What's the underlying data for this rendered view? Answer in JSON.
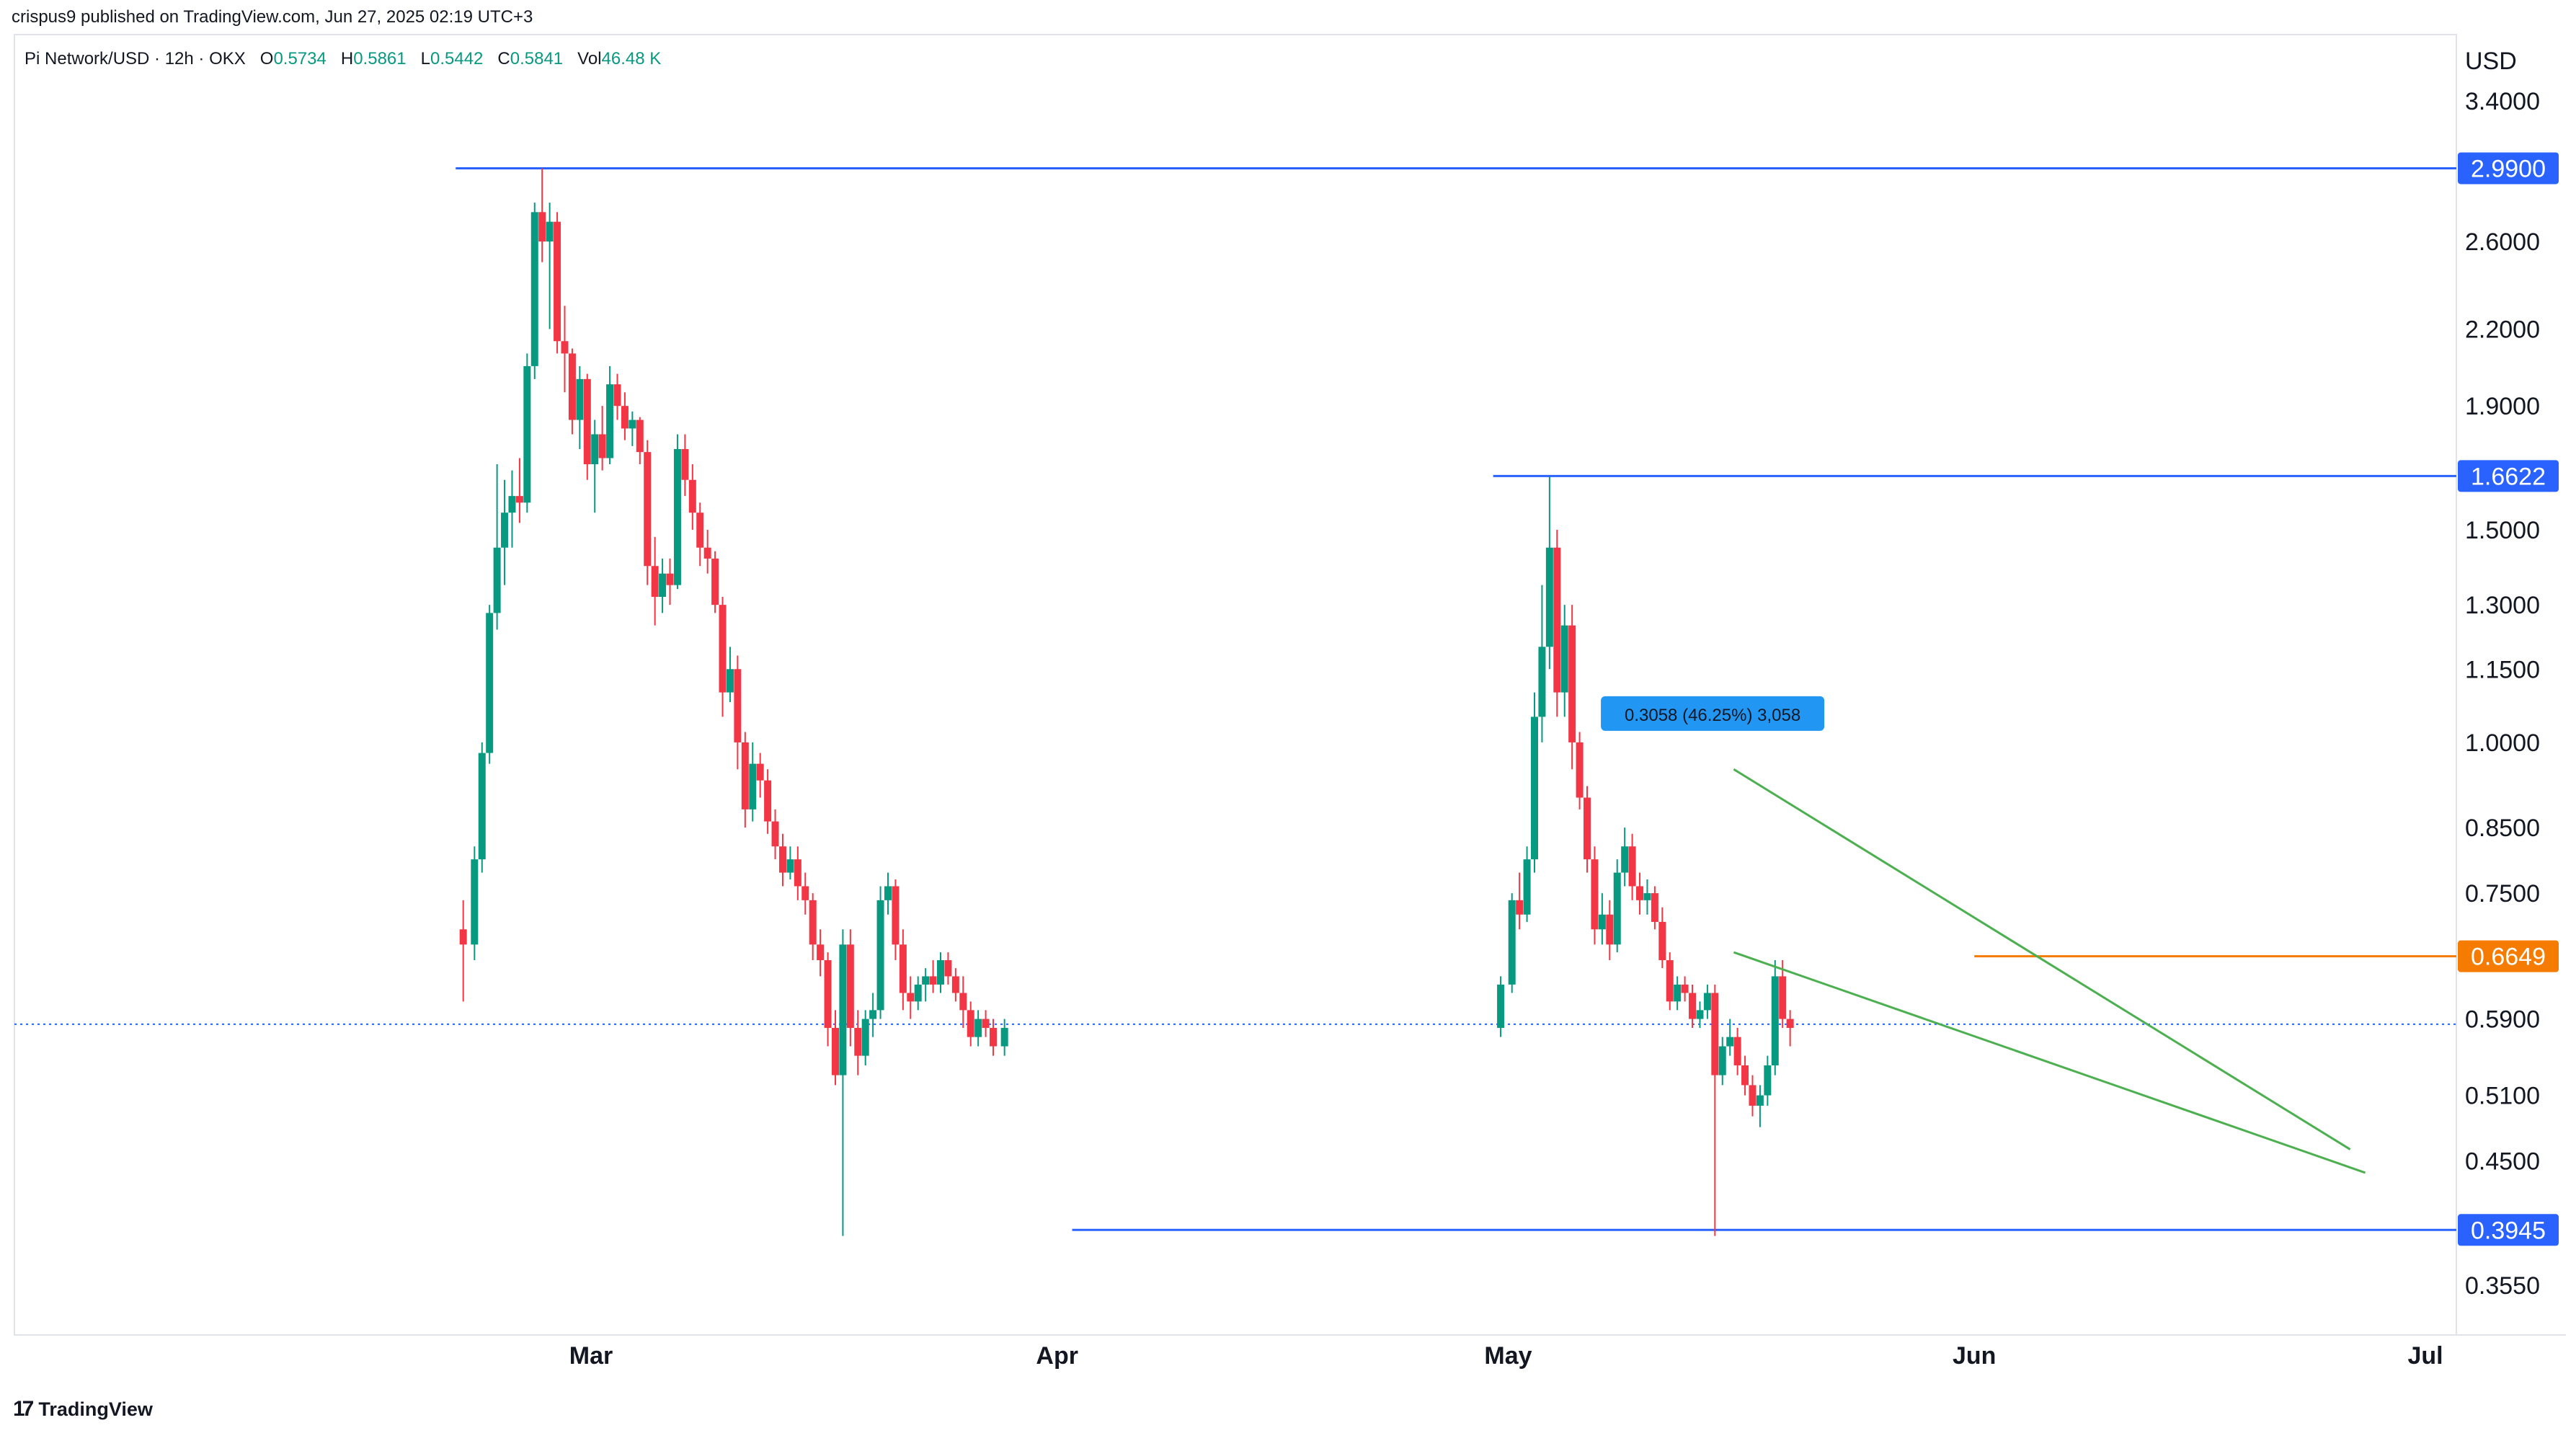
{
  "header": {
    "published": "crispus9 published on TradingView.com, Jun 27, 2025 02:19 UTC+3",
    "symbol": "Pi Network/USD · 12h · OKX",
    "ohlc": [
      {
        "key": "O",
        "value": "0.5734"
      },
      {
        "key": "H",
        "value": "0.5861"
      },
      {
        "key": "L",
        "value": "0.5442"
      },
      {
        "key": "C",
        "value": "0.5841"
      },
      {
        "key": "Vol",
        "value": "46.48 K"
      }
    ]
  },
  "footer": {
    "logo_text": "TradingView",
    "logo_glyph": "17"
  },
  "colors": {
    "up": "#089981",
    "down": "#f23645",
    "level_line": "#2962ff",
    "level_tag": "#2962ff",
    "orange": "#f57c00",
    "wedge": "#4caf50",
    "measure": "#2196f3",
    "price_line": "#2962ff"
  },
  "chart_data": {
    "type": "candlestick",
    "currency_label": "USD",
    "y_scale": "log",
    "y_ticks": [
      "3.4000",
      "2.6000",
      "2.2000",
      "1.9000",
      "1.5000",
      "1.3000",
      "1.1500",
      "1.0000",
      "0.8500",
      "0.7500",
      "0.5900",
      "0.5100",
      "0.4500",
      "0.3550"
    ],
    "y_tick_values": [
      3.4,
      2.6,
      2.2,
      1.9,
      1.5,
      1.3,
      1.15,
      1.0,
      0.85,
      0.75,
      0.59,
      0.51,
      0.45,
      0.355
    ],
    "x_ticks": [
      "Mar",
      "Apr",
      "May",
      "Jun",
      "Jul"
    ],
    "x_tick_dates": [
      "2025-03-01",
      "2025-04-01",
      "2025-05-01",
      "2025-06-01",
      "2025-07-01"
    ],
    "horizontal_levels": [
      {
        "label": "2.9900",
        "value": 2.99,
        "from": "2025-02-20",
        "color": "#2962ff"
      },
      {
        "label": "1.6622",
        "value": 1.6622,
        "from": "2025-04-30",
        "color": "#2962ff"
      },
      {
        "label": "0.6649",
        "value": 0.6649,
        "from": "2025-06-01",
        "color": "#f57c00"
      },
      {
        "label": "0.3945",
        "value": 0.3945,
        "from": "2025-04-02",
        "color": "#2962ff"
      }
    ],
    "current_price": 0.5841,
    "measure_label": "0.3058 (46.25%) 3,058",
    "wedge": {
      "upper": [
        [
          "2025-05-16",
          0.95
        ],
        [
          "2025-06-26",
          0.46
        ]
      ],
      "lower": [
        [
          "2025-05-16",
          0.67
        ],
        [
          "2025-06-27",
          0.44
        ]
      ]
    },
    "candles": [
      [
        "2025-02-20",
        0.7,
        0.74,
        0.61,
        0.68
      ],
      [
        "2025-02-21",
        0.68,
        0.82,
        0.66,
        0.8
      ],
      [
        "2025-02-21",
        0.8,
        1.0,
        0.78,
        0.98
      ],
      [
        "2025-02-22",
        0.98,
        1.3,
        0.96,
        1.28
      ],
      [
        "2025-02-22",
        1.28,
        1.7,
        1.24,
        1.45
      ],
      [
        "2025-02-23",
        1.45,
        1.65,
        1.35,
        1.55
      ],
      [
        "2025-02-23",
        1.55,
        1.68,
        1.45,
        1.6
      ],
      [
        "2025-02-24",
        1.6,
        1.72,
        1.52,
        1.58
      ],
      [
        "2025-02-24",
        1.58,
        2.1,
        1.55,
        2.05
      ],
      [
        "2025-02-25",
        2.05,
        2.8,
        2.0,
        2.75
      ],
      [
        "2025-02-25",
        2.75,
        2.99,
        2.5,
        2.6
      ],
      [
        "2025-02-26",
        2.6,
        2.8,
        2.2,
        2.7
      ],
      [
        "2025-02-26",
        2.7,
        2.75,
        2.1,
        2.15
      ],
      [
        "2025-02-27",
        2.15,
        2.3,
        1.95,
        2.1
      ],
      [
        "2025-02-27",
        2.1,
        2.12,
        1.8,
        1.85
      ],
      [
        "2025-02-28",
        1.85,
        2.05,
        1.75,
        2.0
      ],
      [
        "2025-02-28",
        2.0,
        2.02,
        1.65,
        1.7
      ],
      [
        "2025-03-01",
        1.7,
        1.85,
        1.55,
        1.8
      ],
      [
        "2025-03-01",
        1.8,
        1.9,
        1.68,
        1.72
      ],
      [
        "2025-03-02",
        1.72,
        2.05,
        1.7,
        1.98
      ],
      [
        "2025-03-02",
        1.98,
        2.02,
        1.85,
        1.9
      ],
      [
        "2025-03-03",
        1.9,
        1.95,
        1.78,
        1.82
      ],
      [
        "2025-03-03",
        1.82,
        1.88,
        1.76,
        1.85
      ],
      [
        "2025-03-04",
        1.85,
        1.86,
        1.7,
        1.74
      ],
      [
        "2025-03-04",
        1.74,
        1.78,
        1.35,
        1.4
      ],
      [
        "2025-03-05",
        1.4,
        1.48,
        1.25,
        1.32
      ],
      [
        "2025-03-05",
        1.32,
        1.42,
        1.28,
        1.38
      ],
      [
        "2025-03-06",
        1.38,
        1.42,
        1.3,
        1.35
      ],
      [
        "2025-03-06",
        1.35,
        1.8,
        1.34,
        1.75
      ],
      [
        "2025-03-07",
        1.75,
        1.8,
        1.6,
        1.65
      ],
      [
        "2025-03-07",
        1.65,
        1.7,
        1.5,
        1.55
      ],
      [
        "2025-03-08",
        1.55,
        1.58,
        1.4,
        1.45
      ],
      [
        "2025-03-08",
        1.45,
        1.5,
        1.38,
        1.42
      ],
      [
        "2025-03-09",
        1.42,
        1.44,
        1.28,
        1.3
      ],
      [
        "2025-03-09",
        1.3,
        1.32,
        1.05,
        1.1
      ],
      [
        "2025-03-10",
        1.1,
        1.2,
        1.08,
        1.15
      ],
      [
        "2025-03-10",
        1.15,
        1.18,
        0.95,
        1.0
      ],
      [
        "2025-03-11",
        1.0,
        1.02,
        0.85,
        0.88
      ],
      [
        "2025-03-11",
        0.88,
        1.0,
        0.86,
        0.96
      ],
      [
        "2025-03-12",
        0.96,
        0.98,
        0.9,
        0.93
      ],
      [
        "2025-03-12",
        0.93,
        0.95,
        0.84,
        0.86
      ],
      [
        "2025-03-13",
        0.86,
        0.88,
        0.8,
        0.82
      ],
      [
        "2025-03-13",
        0.82,
        0.84,
        0.76,
        0.78
      ],
      [
        "2025-03-14",
        0.78,
        0.82,
        0.77,
        0.8
      ],
      [
        "2025-03-14",
        0.8,
        0.82,
        0.74,
        0.76
      ],
      [
        "2025-03-15",
        0.76,
        0.78,
        0.72,
        0.74
      ],
      [
        "2025-03-15",
        0.74,
        0.75,
        0.66,
        0.68
      ],
      [
        "2025-03-16",
        0.68,
        0.7,
        0.64,
        0.66
      ],
      [
        "2025-03-16",
        0.66,
        0.67,
        0.56,
        0.58
      ],
      [
        "2025-03-17",
        0.58,
        0.6,
        0.52,
        0.53
      ],
      [
        "2025-03-17",
        0.53,
        0.7,
        0.39,
        0.68
      ],
      [
        "2025-03-18",
        0.68,
        0.7,
        0.56,
        0.58
      ],
      [
        "2025-03-18",
        0.58,
        0.6,
        0.53,
        0.55
      ],
      [
        "2025-03-19",
        0.55,
        0.6,
        0.54,
        0.59
      ],
      [
        "2025-03-19",
        0.59,
        0.62,
        0.57,
        0.6
      ],
      [
        "2025-03-20",
        0.6,
        0.76,
        0.59,
        0.74
      ],
      [
        "2025-03-20",
        0.74,
        0.78,
        0.72,
        0.76
      ],
      [
        "2025-03-21",
        0.76,
        0.77,
        0.66,
        0.68
      ],
      [
        "2025-03-21",
        0.68,
        0.7,
        0.6,
        0.62
      ],
      [
        "2025-03-22",
        0.62,
        0.64,
        0.59,
        0.61
      ],
      [
        "2025-03-22",
        0.61,
        0.64,
        0.6,
        0.63
      ],
      [
        "2025-03-23",
        0.63,
        0.65,
        0.61,
        0.64
      ],
      [
        "2025-03-23",
        0.64,
        0.66,
        0.62,
        0.63
      ],
      [
        "2025-03-24",
        0.63,
        0.67,
        0.62,
        0.66
      ],
      [
        "2025-03-24",
        0.66,
        0.67,
        0.63,
        0.64
      ],
      [
        "2025-03-25",
        0.64,
        0.65,
        0.61,
        0.62
      ],
      [
        "2025-03-25",
        0.62,
        0.64,
        0.58,
        0.6
      ],
      [
        "2025-03-26",
        0.6,
        0.61,
        0.56,
        0.57
      ],
      [
        "2025-03-26",
        0.57,
        0.6,
        0.56,
        0.59
      ],
      [
        "2025-03-27",
        0.59,
        0.6,
        0.57,
        0.58
      ],
      [
        "2025-03-27",
        0.58,
        0.59,
        0.55,
        0.56
      ],
      [
        "2025-03-28",
        0.56,
        0.59,
        0.55,
        0.58
      ],
      [
        "2025-04-30",
        0.58,
        0.64,
        0.57,
        0.63
      ],
      [
        "2025-05-01",
        0.63,
        0.75,
        0.62,
        0.74
      ],
      [
        "2025-05-01",
        0.74,
        0.78,
        0.7,
        0.72
      ],
      [
        "2025-05-02",
        0.72,
        0.82,
        0.71,
        0.8
      ],
      [
        "2025-05-02",
        0.8,
        1.1,
        0.78,
        1.05
      ],
      [
        "2025-05-03",
        1.05,
        1.35,
        1.0,
        1.2
      ],
      [
        "2025-05-03",
        1.2,
        1.66,
        1.15,
        1.45
      ],
      [
        "2025-05-04",
        1.45,
        1.5,
        1.05,
        1.1
      ],
      [
        "2025-05-04",
        1.1,
        1.3,
        1.05,
        1.25
      ],
      [
        "2025-05-05",
        1.25,
        1.3,
        0.95,
        1.0
      ],
      [
        "2025-05-05",
        1.0,
        1.02,
        0.88,
        0.9
      ],
      [
        "2025-05-06",
        0.9,
        0.92,
        0.78,
        0.8
      ],
      [
        "2025-05-06",
        0.8,
        0.82,
        0.68,
        0.7
      ],
      [
        "2025-05-07",
        0.7,
        0.75,
        0.68,
        0.72
      ],
      [
        "2025-05-07",
        0.72,
        0.74,
        0.66,
        0.68
      ],
      [
        "2025-05-08",
        0.68,
        0.8,
        0.67,
        0.78
      ],
      [
        "2025-05-08",
        0.78,
        0.85,
        0.76,
        0.82
      ],
      [
        "2025-05-09",
        0.82,
        0.84,
        0.74,
        0.76
      ],
      [
        "2025-05-09",
        0.76,
        0.78,
        0.72,
        0.74
      ],
      [
        "2025-05-10",
        0.74,
        0.77,
        0.72,
        0.75
      ],
      [
        "2025-05-10",
        0.75,
        0.76,
        0.7,
        0.71
      ],
      [
        "2025-05-11",
        0.71,
        0.73,
        0.65,
        0.66
      ],
      [
        "2025-05-11",
        0.66,
        0.67,
        0.6,
        0.61
      ],
      [
        "2025-05-12",
        0.61,
        0.64,
        0.6,
        0.63
      ],
      [
        "2025-05-12",
        0.63,
        0.64,
        0.61,
        0.62
      ],
      [
        "2025-05-13",
        0.62,
        0.63,
        0.58,
        0.59
      ],
      [
        "2025-05-13",
        0.59,
        0.61,
        0.58,
        0.6
      ],
      [
        "2025-05-14",
        0.6,
        0.63,
        0.59,
        0.62
      ],
      [
        "2025-05-14",
        0.62,
        0.63,
        0.39,
        0.53
      ],
      [
        "2025-05-15",
        0.53,
        0.57,
        0.52,
        0.56
      ],
      [
        "2025-05-15",
        0.56,
        0.59,
        0.55,
        0.57
      ],
      [
        "2025-05-16",
        0.57,
        0.58,
        0.53,
        0.54
      ],
      [
        "2025-05-16",
        0.54,
        0.55,
        0.51,
        0.52
      ],
      [
        "2025-05-17",
        0.52,
        0.53,
        0.49,
        0.5
      ],
      [
        "2025-05-17",
        0.5,
        0.52,
        0.48,
        0.51
      ],
      [
        "2025-05-18",
        0.51,
        0.55,
        0.5,
        0.54
      ],
      [
        "2025-05-18",
        0.54,
        0.66,
        0.53,
        0.64
      ],
      [
        "2025-05-19",
        0.64,
        0.66,
        0.58,
        0.59
      ],
      [
        "2025-05-19",
        0.59,
        0.6,
        0.56,
        0.58
      ]
    ]
  }
}
